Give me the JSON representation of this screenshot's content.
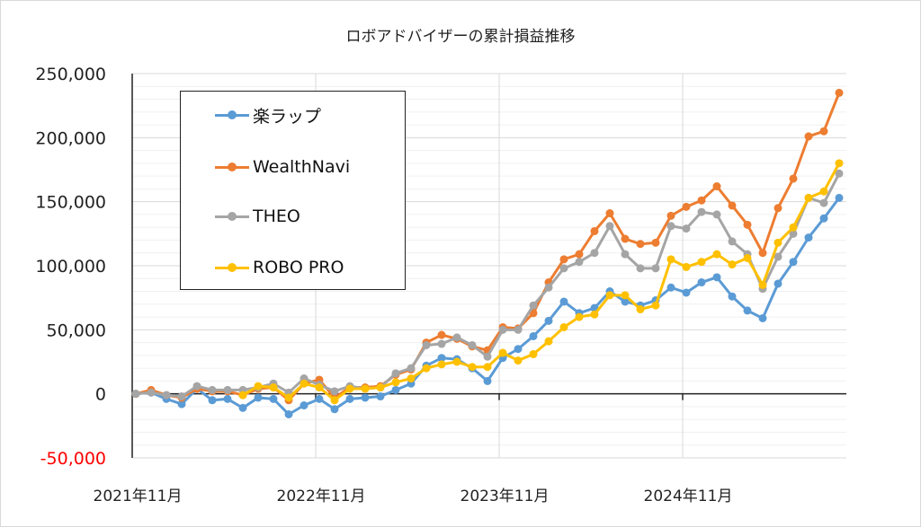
{
  "chart_data": {
    "type": "line",
    "title": "ロボアドバイザーの累計損益推移",
    "xlabel": "",
    "ylabel": "",
    "ylim": [
      -50000,
      250000
    ],
    "y_major_step": 50000,
    "y_minor_step": 10000,
    "grid": true,
    "legend_position": "top-left",
    "y_tick_labels": [
      "-50,000",
      "0",
      "50,000",
      "100,000",
      "150,000",
      "200,000",
      "250,000"
    ],
    "y_tick_values": [
      -50000,
      0,
      50000,
      100000,
      150000,
      200000,
      250000
    ],
    "x_tick_labels": [
      "2021年11月",
      "2022年11月",
      "2023年11月",
      "2024年11月"
    ],
    "x_tick_indices": [
      0,
      12,
      24,
      36
    ],
    "num_points": 47,
    "series": [
      {
        "name": "楽ラップ",
        "color": "#5b9bd5",
        "start_index": 0,
        "values": [
          0,
          1000,
          -4000,
          -8000,
          4000,
          -5000,
          -4000,
          -11000,
          -3000,
          -4000,
          -16000,
          -9000,
          -4000,
          -12000,
          -4000,
          -3000,
          -2000,
          3000,
          8000,
          22000,
          28000,
          27000,
          20000,
          10000,
          28000,
          35000,
          45000,
          57000,
          72000,
          63000,
          67000,
          80000,
          72000,
          69000,
          73000,
          83000,
          79000,
          87000,
          91000,
          76000,
          65000,
          59000,
          86000,
          103000,
          122000,
          137000,
          153000
        ]
      },
      {
        "name": "WealthNavi",
        "color": "#ed7d31",
        "start_index": 0,
        "values": [
          0,
          3000,
          -1000,
          -3000,
          4000,
          2000,
          2000,
          -1000,
          4000,
          5000,
          -5000,
          8000,
          11000,
          -3000,
          5000,
          5000,
          6000,
          15000,
          19000,
          40000,
          46000,
          43000,
          37000,
          34000,
          52000,
          51000,
          63000,
          87000,
          105000,
          109000,
          127000,
          141000,
          121000,
          117000,
          118000,
          139000,
          146000,
          151000,
          162000,
          147000,
          132000,
          110000,
          145000,
          168000,
          201000,
          205000,
          235000
        ]
      },
      {
        "name": "THEO",
        "color": "#a5a5a5",
        "start_index": 0,
        "values": [
          0,
          1000,
          -1000,
          -2000,
          6000,
          3000,
          3000,
          3000,
          5000,
          8000,
          1000,
          12000,
          7000,
          2000,
          6000,
          4000,
          5000,
          16000,
          20000,
          38000,
          39000,
          44000,
          38000,
          29000,
          50000,
          50000,
          69000,
          83000,
          98000,
          103000,
          110000,
          131000,
          109000,
          98000,
          98000,
          131000,
          129000,
          142000,
          140000,
          119000,
          109000,
          82000,
          107000,
          125000,
          153000,
          149000,
          172000
        ]
      },
      {
        "name": "ROBO PRO",
        "color": "#ffc000",
        "start_index": 7,
        "values": [
          -1000,
          6000,
          5000,
          -3000,
          8000,
          5000,
          -5000,
          4000,
          4000,
          5000,
          9000,
          12000,
          20000,
          23000,
          25000,
          21000,
          21000,
          32000,
          26000,
          31000,
          41000,
          52000,
          60000,
          62000,
          77000,
          77000,
          66000,
          69000,
          105000,
          99000,
          103000,
          109000,
          101000,
          106000,
          85000,
          118000,
          130000,
          153000,
          158000,
          180000
        ]
      }
    ]
  }
}
